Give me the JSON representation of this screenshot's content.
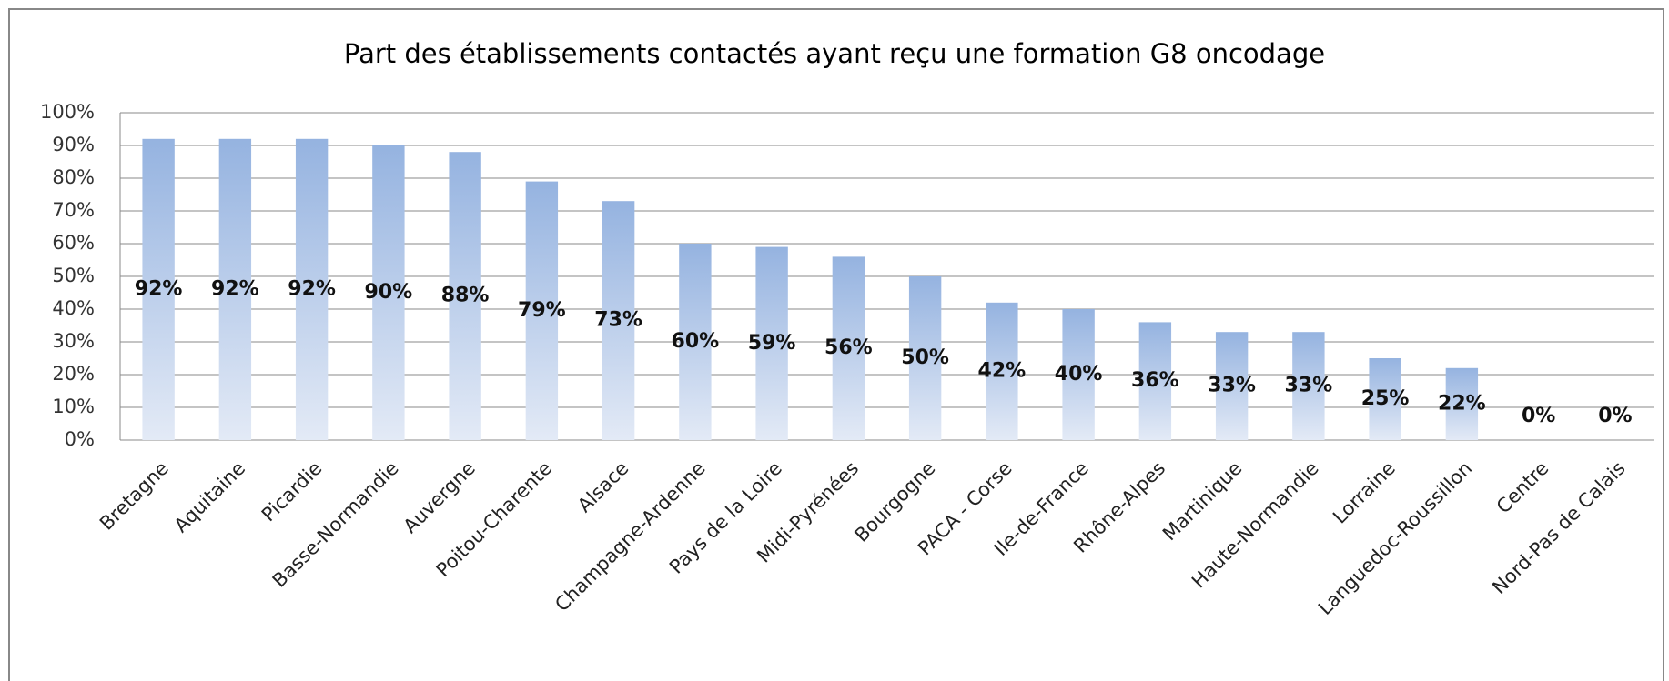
{
  "chart_data": {
    "type": "bar",
    "title": "Part des établissements contactés ayant reçu une formation G8 oncodage",
    "categories": [
      "Bretagne",
      "Aquitaine",
      "Picardie",
      "Basse-Normandie",
      "Auvergne",
      "Poitou-Charente",
      "Alsace",
      "Champagne-Ardenne",
      "Pays de la Loire",
      "Midi-Pyrénées",
      "Bourgogne",
      "PACA - Corse",
      "Ile-de-France",
      "Rhône-Alpes",
      "Martinique",
      "Haute-Normandie",
      "Lorraine",
      "Languedoc-Roussillon",
      "Centre",
      "Nord-Pas de Calais"
    ],
    "values": [
      92,
      92,
      92,
      90,
      88,
      79,
      73,
      60,
      59,
      56,
      50,
      42,
      40,
      36,
      33,
      33,
      25,
      22,
      0,
      0
    ],
    "value_labels": [
      "92%",
      "92%",
      "92%",
      "90%",
      "88%",
      "79%",
      "73%",
      "60%",
      "59%",
      "56%",
      "50%",
      "42%",
      "40%",
      "36%",
      "33%",
      "33%",
      "25%",
      "22%",
      "0%",
      "0%"
    ],
    "color": "#95b3e0",
    "ylim": [
      0,
      100
    ],
    "yticks": [
      {
        "value": 0,
        "label": "0%"
      },
      {
        "value": 10,
        "label": "10%"
      },
      {
        "value": 20,
        "label": "20%"
      },
      {
        "value": 30,
        "label": "30%"
      },
      {
        "value": 40,
        "label": "40%"
      },
      {
        "value": 50,
        "label": "50%"
      },
      {
        "value": 60,
        "label": "60%"
      },
      {
        "value": 70,
        "label": "70%"
      },
      {
        "value": 80,
        "label": "80%"
      },
      {
        "value": 90,
        "label": "90%"
      },
      {
        "value": 100,
        "label": "100%"
      }
    ],
    "grid": true
  }
}
